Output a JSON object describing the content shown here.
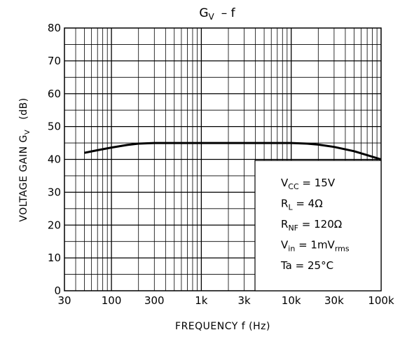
{
  "chart_data": {
    "type": "line",
    "title_main": "G",
    "title_sub": "V",
    "title_rest": "– f",
    "xlabel": "FREQUENCY   f   (Hz)",
    "ylabel": "VOLTAGE  GAIN   G",
    "ylabel_sub": "V",
    "ylabel_unit": "(dB)",
    "x_scale": "log",
    "xlim": [
      30,
      100000
    ],
    "ylim": [
      0,
      80
    ],
    "grid": true,
    "x_ticks": [
      {
        "value": 30,
        "label": "30"
      },
      {
        "value": 100,
        "label": "100"
      },
      {
        "value": 300,
        "label": "300"
      },
      {
        "value": 1000,
        "label": "1k"
      },
      {
        "value": 3000,
        "label": "3k"
      },
      {
        "value": 10000,
        "label": "10k"
      },
      {
        "value": 30000,
        "label": "30k"
      },
      {
        "value": 100000,
        "label": "100k"
      }
    ],
    "y_ticks": [
      {
        "value": 0,
        "label": "0"
      },
      {
        "value": 10,
        "label": "10"
      },
      {
        "value": 20,
        "label": "20"
      },
      {
        "value": 30,
        "label": "30"
      },
      {
        "value": 40,
        "label": "40"
      },
      {
        "value": 50,
        "label": "50"
      },
      {
        "value": 60,
        "label": "60"
      },
      {
        "value": 70,
        "label": "70"
      },
      {
        "value": 80,
        "label": "80"
      }
    ],
    "series": [
      {
        "x": [
          50,
          70,
          100,
          150,
          200,
          300,
          500,
          1000,
          2000,
          5000,
          10000,
          15000,
          20000,
          30000,
          50000,
          70000,
          100000
        ],
        "y": [
          42,
          42.8,
          43.6,
          44.4,
          44.8,
          45,
          45,
          45,
          45,
          45,
          45,
          44.8,
          44.5,
          43.8,
          42.5,
          41.3,
          40
        ]
      }
    ],
    "conditions": [
      {
        "main": "V",
        "sub": "CC",
        "rest": " = 15V"
      },
      {
        "main": "R",
        "sub": "L",
        "rest": " = 4Ω"
      },
      {
        "main": "R",
        "sub": "NF",
        "rest": " = 120Ω"
      },
      {
        "main": "V",
        "sub": "in",
        "rest": " = 1mV",
        "sub2": "rms"
      },
      {
        "main": "Ta = 25°C",
        "sub": "",
        "rest": ""
      }
    ],
    "line_color": "#000000",
    "grid_color": "#000000"
  }
}
